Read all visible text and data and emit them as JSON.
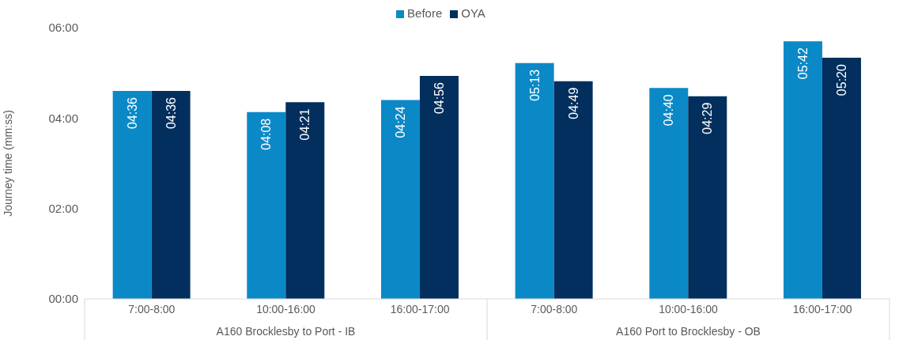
{
  "chart_data": {
    "type": "bar",
    "ylabel": "Journey time (mm:ss)",
    "categories": [
      "7:00-8:00",
      "10:00-16:00",
      "16:00-17:00",
      "7:00-8:00",
      "10:00-16:00",
      "16:00-17:00"
    ],
    "series": [
      {
        "name": "Before",
        "color": "#0b89c7",
        "values": [
          276,
          248,
          264,
          313,
          280,
          342
        ],
        "value_labels": [
          "04:36",
          "04:08",
          "04:24",
          "05:13",
          "04:40",
          "05:42"
        ]
      },
      {
        "name": "OYA",
        "color": "#032f5e",
        "values": [
          276,
          261,
          296,
          289,
          269,
          320
        ],
        "value_labels": [
          "04:36",
          "04:21",
          "04:56",
          "04:49",
          "04:29",
          "05:20"
        ]
      }
    ],
    "ylim": [
      0,
      360
    ],
    "yticks": [
      {
        "value": 0,
        "label": "00:00"
      },
      {
        "value": 120,
        "label": "02:00"
      },
      {
        "value": 240,
        "label": "04:00"
      },
      {
        "value": 360,
        "label": "06:00"
      }
    ],
    "legend": "top",
    "annotations": [
      "A160 Brocklesby to Port - IB",
      "A160 Port to Brocklesby - OB"
    ]
  }
}
